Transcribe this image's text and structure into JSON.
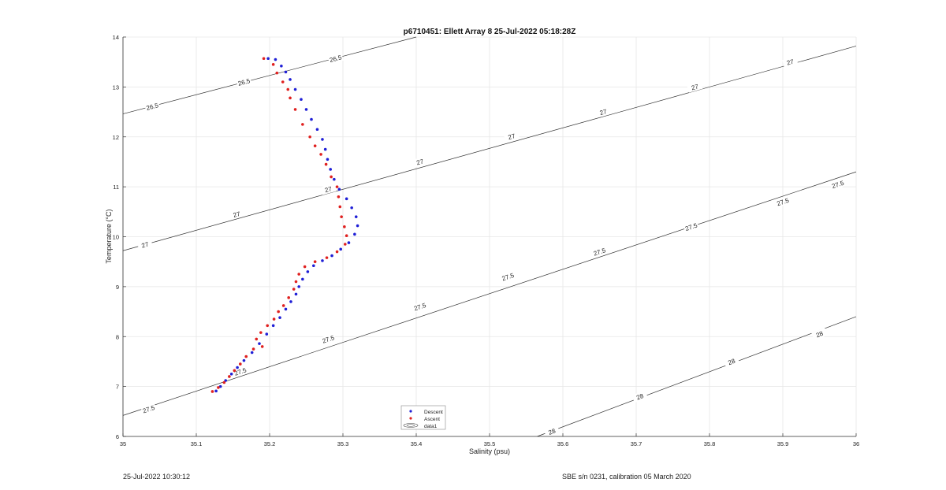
{
  "chart_data": {
    "type": "scatter",
    "title": "p6710451: Ellett Array 8 25-Jul-2022 05:18:28Z",
    "xlabel": "Salinity (psu)",
    "ylabel": "Temperature (°C)",
    "xlim": [
      35,
      36
    ],
    "ylim": [
      6,
      14
    ],
    "xticks": [
      "35",
      "35.1",
      "35.2",
      "35.3",
      "35.4",
      "35.5",
      "35.6",
      "35.7",
      "35.8",
      "35.9",
      "36"
    ],
    "yticks": [
      "6",
      "7",
      "8",
      "9",
      "10",
      "11",
      "12",
      "13",
      "14"
    ],
    "grid": true,
    "legend_position": "bottom-center",
    "legend": [
      "Descent",
      "Ascent",
      "data1"
    ],
    "contours": [
      {
        "level": "26.5",
        "points": [
          [
            35,
            12.46
          ],
          [
            35.4,
            14.0
          ]
        ],
        "labels": [
          [
            35.04,
            12.61
          ],
          [
            35.165,
            13.1
          ],
          [
            35.29,
            13.57
          ]
        ]
      },
      {
        "level": "27",
        "points": [
          [
            35,
            9.72
          ],
          [
            36,
            13.82
          ]
        ],
        "labels": [
          [
            35.03,
            9.84
          ],
          [
            35.155,
            10.45
          ],
          [
            35.28,
            10.95
          ],
          [
            35.405,
            11.5
          ],
          [
            35.53,
            12.01
          ],
          [
            35.655,
            12.5
          ],
          [
            35.78,
            13.0
          ],
          [
            35.91,
            13.5
          ]
        ]
      },
      {
        "level": "27.5",
        "points": [
          [
            35,
            6.42
          ],
          [
            36,
            11.3
          ]
        ],
        "labels": [
          [
            35.035,
            6.55
          ],
          [
            35.16,
            7.3
          ],
          [
            35.28,
            7.95
          ],
          [
            35.405,
            8.6
          ],
          [
            35.525,
            9.2
          ],
          [
            35.65,
            9.7
          ],
          [
            35.775,
            10.2
          ],
          [
            35.9,
            10.7
          ],
          [
            35.975,
            11.05
          ]
        ]
      },
      {
        "level": "28",
        "points": [
          [
            35.565,
            6.0
          ],
          [
            36,
            8.4
          ]
        ],
        "labels": [
          [
            35.585,
            6.1
          ],
          [
            35.705,
            6.8
          ],
          [
            35.83,
            7.5
          ],
          [
            35.95,
            8.05
          ]
        ]
      }
    ],
    "series": [
      {
        "name": "Descent",
        "color": "#1f1fd6",
        "points": [
          [
            35.127,
            6.91
          ],
          [
            35.133,
            7.0
          ],
          [
            35.14,
            7.12
          ],
          [
            35.148,
            7.25
          ],
          [
            35.156,
            7.38
          ],
          [
            35.165,
            7.52
          ],
          [
            35.176,
            7.68
          ],
          [
            35.186,
            7.86
          ],
          [
            35.196,
            8.05
          ],
          [
            35.205,
            8.22
          ],
          [
            35.214,
            8.38
          ],
          [
            35.222,
            8.55
          ],
          [
            35.229,
            8.7
          ],
          [
            35.236,
            8.85
          ],
          [
            35.24,
            9.0
          ],
          [
            35.245,
            9.15
          ],
          [
            35.252,
            9.3
          ],
          [
            35.26,
            9.42
          ],
          [
            35.272,
            9.52
          ],
          [
            35.285,
            9.62
          ],
          [
            35.297,
            9.75
          ],
          [
            35.308,
            9.88
          ],
          [
            35.316,
            10.05
          ],
          [
            35.32,
            10.22
          ],
          [
            35.318,
            10.4
          ],
          [
            35.312,
            10.58
          ],
          [
            35.305,
            10.76
          ],
          [
            35.295,
            10.95
          ],
          [
            35.288,
            11.15
          ],
          [
            35.283,
            11.35
          ],
          [
            35.279,
            11.55
          ],
          [
            35.276,
            11.75
          ],
          [
            35.272,
            11.95
          ],
          [
            35.265,
            12.15
          ],
          [
            35.257,
            12.35
          ],
          [
            35.25,
            12.55
          ],
          [
            35.243,
            12.75
          ],
          [
            35.235,
            12.95
          ],
          [
            35.228,
            13.15
          ],
          [
            35.222,
            13.3
          ],
          [
            35.216,
            13.42
          ],
          [
            35.208,
            13.55
          ],
          [
            35.198,
            13.57
          ]
        ]
      },
      {
        "name": "Ascent",
        "color": "#e0201f",
        "points": [
          [
            35.122,
            6.9
          ],
          [
            35.13,
            6.98
          ],
          [
            35.138,
            7.08
          ],
          [
            35.145,
            7.2
          ],
          [
            35.152,
            7.32
          ],
          [
            35.16,
            7.45
          ],
          [
            35.168,
            7.6
          ],
          [
            35.178,
            7.75
          ],
          [
            35.19,
            7.8
          ],
          [
            35.182,
            7.95
          ],
          [
            35.188,
            8.08
          ],
          [
            35.197,
            8.22
          ],
          [
            35.206,
            8.35
          ],
          [
            35.212,
            8.5
          ],
          [
            35.219,
            8.62
          ],
          [
            35.226,
            8.78
          ],
          [
            35.233,
            8.95
          ],
          [
            35.236,
            9.1
          ],
          [
            35.24,
            9.25
          ],
          [
            35.248,
            9.4
          ],
          [
            35.262,
            9.5
          ],
          [
            35.278,
            9.58
          ],
          [
            35.292,
            9.7
          ],
          [
            35.303,
            9.85
          ],
          [
            35.305,
            10.02
          ],
          [
            35.302,
            10.2
          ],
          [
            35.298,
            10.4
          ],
          [
            35.296,
            10.6
          ],
          [
            35.294,
            10.8
          ],
          [
            35.292,
            11.0
          ],
          [
            35.284,
            11.2
          ],
          [
            35.277,
            11.45
          ],
          [
            35.27,
            11.65
          ],
          [
            35.262,
            11.82
          ],
          [
            35.255,
            12.0
          ],
          [
            35.245,
            12.25
          ],
          [
            35.235,
            12.55
          ],
          [
            35.228,
            12.78
          ],
          [
            35.225,
            12.95
          ],
          [
            35.218,
            13.1
          ],
          [
            35.21,
            13.28
          ],
          [
            35.205,
            13.45
          ],
          [
            35.192,
            13.57
          ]
        ]
      }
    ]
  },
  "footer": {
    "timestamp": "25-Jul-2022 10:30:12",
    "calibration": "SBE s/n 0231, calibration 05 March 2020"
  }
}
